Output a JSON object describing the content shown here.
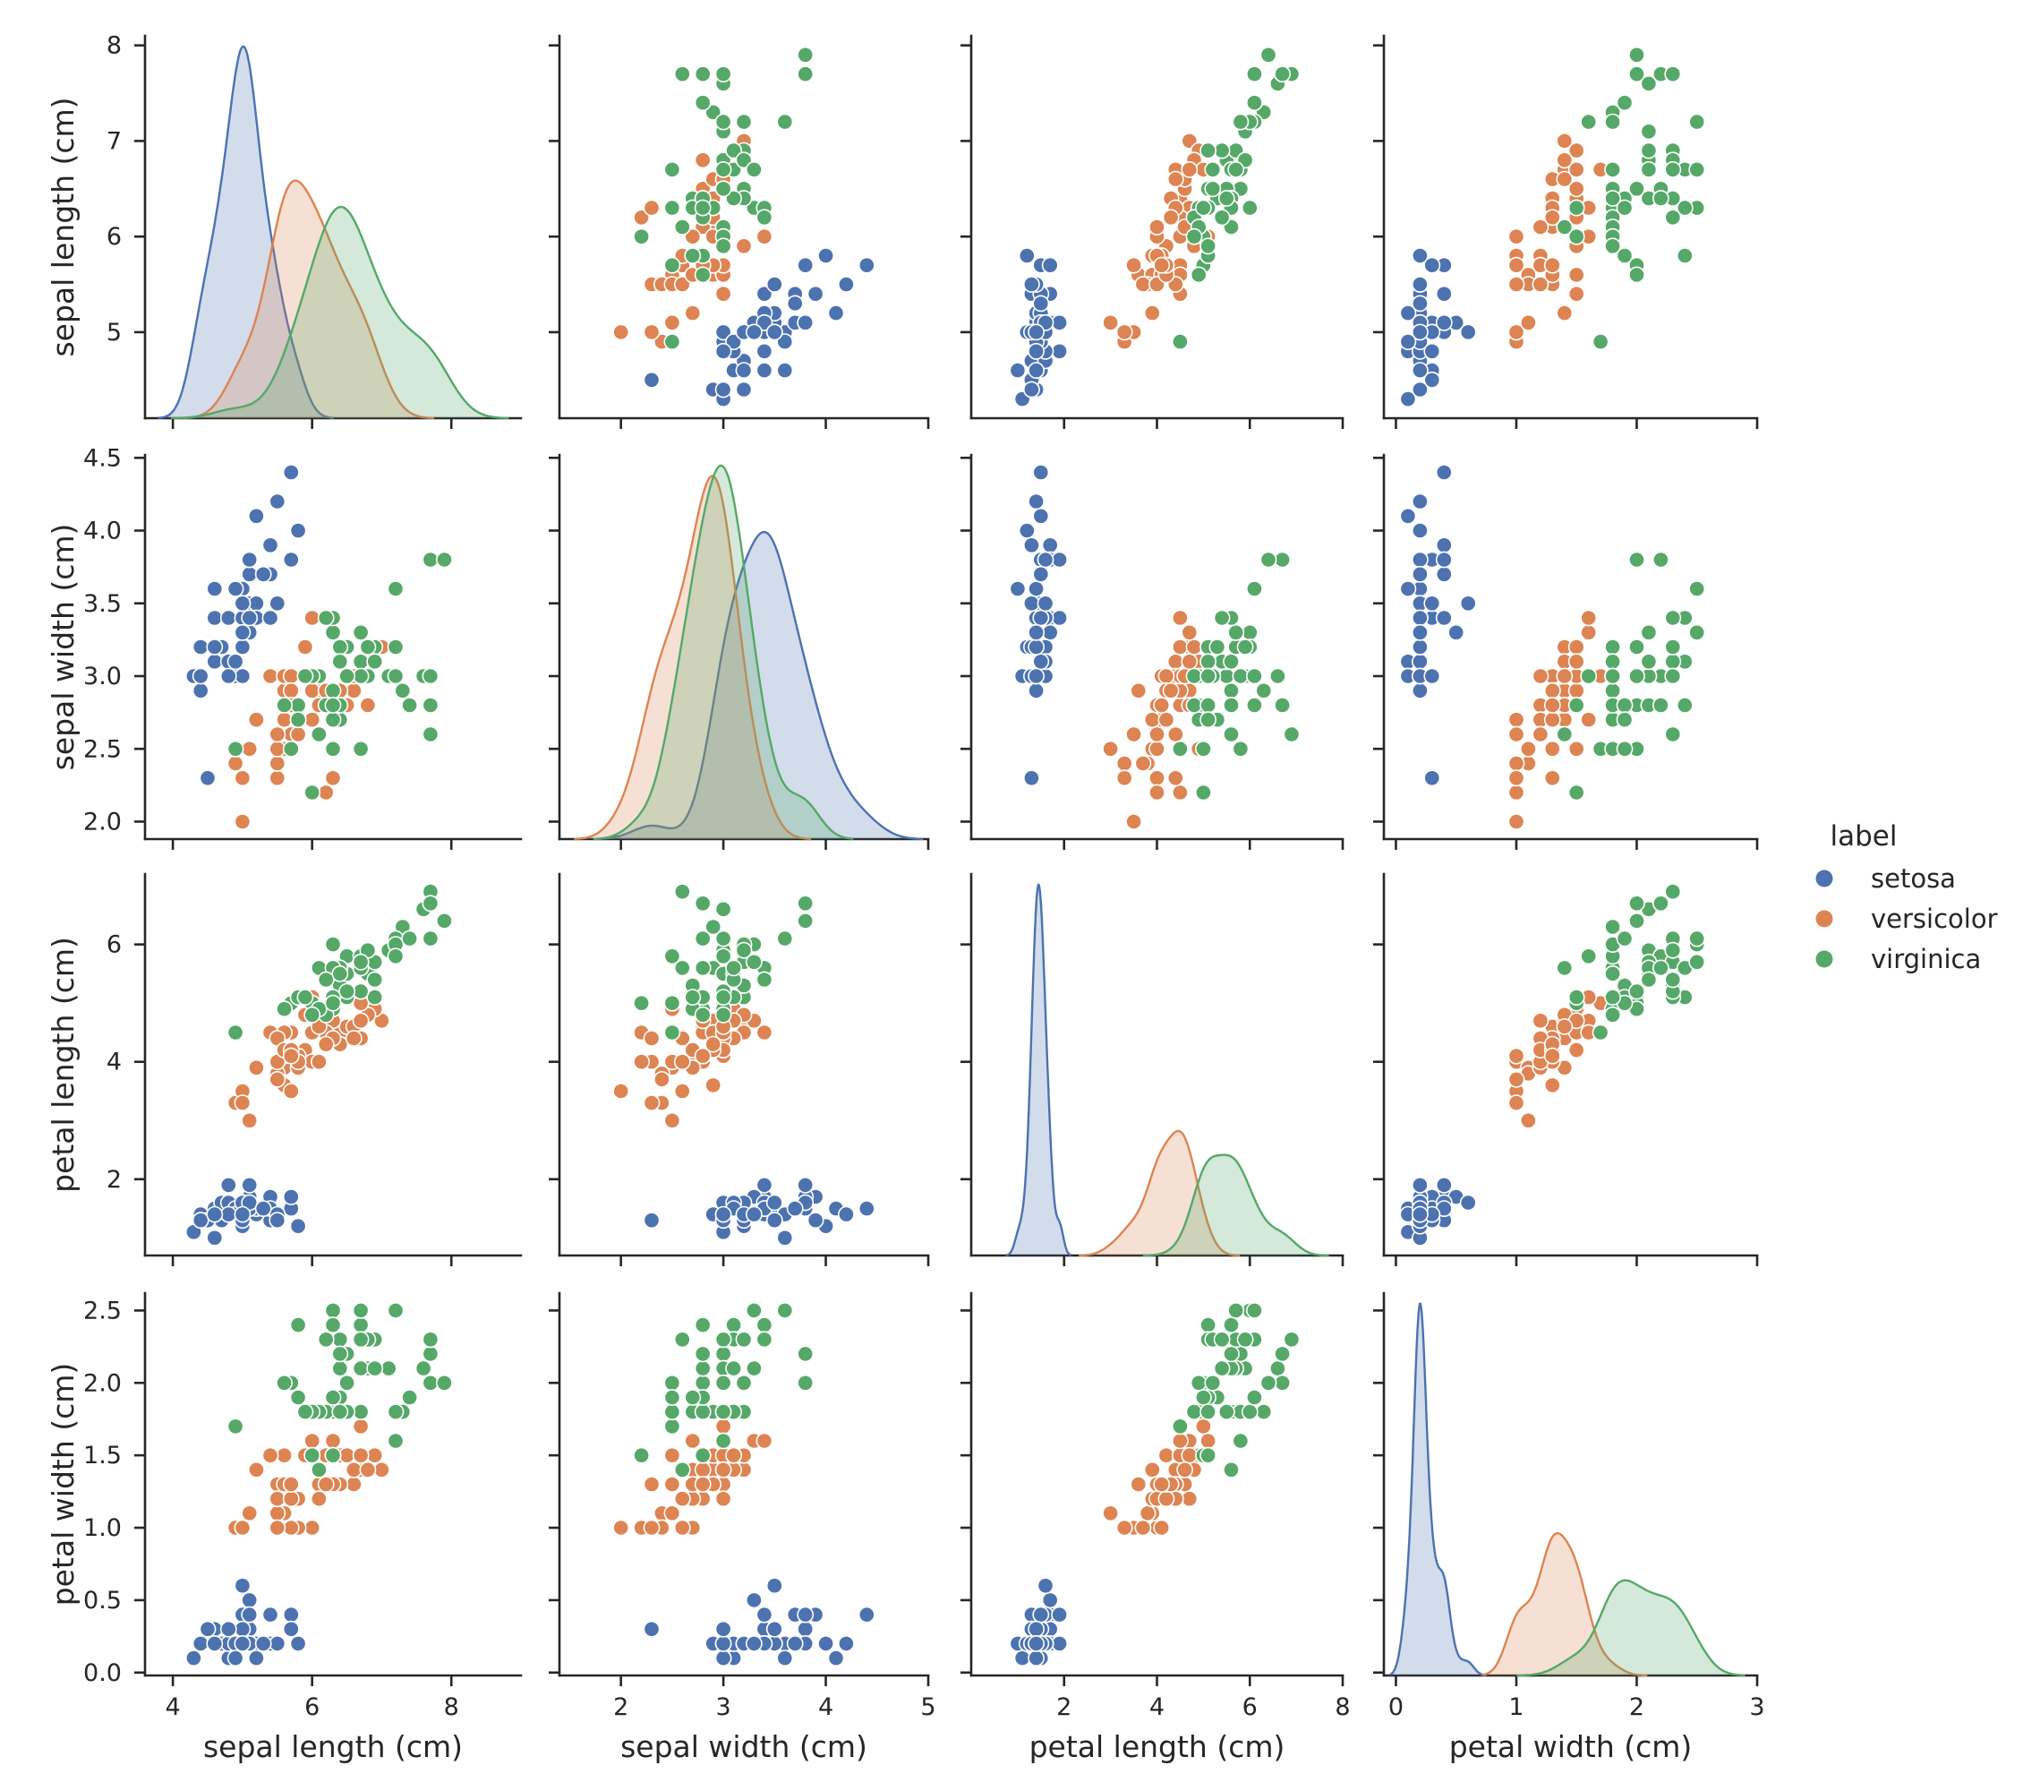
{
  "chart_data": {
    "type": "scatter",
    "subtype": "pairplot",
    "variables": [
      "sepal length (cm)",
      "sepal width (cm)",
      "petal length (cm)",
      "petal width (cm)"
    ],
    "diagonal": "kde",
    "offdiagonal": "scatter",
    "legend": {
      "title": "label",
      "placement": "right",
      "entries": [
        {
          "name": "setosa",
          "color": "#4c72b0"
        },
        {
          "name": "versicolor",
          "color": "#dd8452"
        },
        {
          "name": "virginica",
          "color": "#55a868"
        }
      ]
    },
    "axes": {
      "sepal length (cm)": {
        "lim": [
          3.6,
          9.0
        ],
        "ticks": [
          4,
          6,
          8
        ],
        "tick_labels": [
          "4",
          "6",
          "8"
        ],
        "y_ticks": [
          5,
          6,
          7,
          8
        ],
        "y_tick_labels": [
          "5",
          "6",
          "7",
          "8"
        ],
        "y_lim": [
          4.1,
          8.1
        ]
      },
      "sepal width (cm)": {
        "lim": [
          1.4,
          5.0
        ],
        "ticks": [
          2,
          3,
          4,
          5
        ],
        "tick_labels": [
          "2",
          "3",
          "4",
          "5"
        ],
        "y_ticks": [
          2.0,
          2.5,
          3.0,
          3.5,
          4.0,
          4.5
        ],
        "y_tick_labels": [
          "2.0",
          "2.5",
          "3.0",
          "3.5",
          "4.0",
          "4.5"
        ],
        "y_lim": [
          1.88,
          4.52
        ]
      },
      "petal length (cm)": {
        "lim": [
          0.0,
          8.0
        ],
        "ticks": [
          2,
          4,
          6,
          8
        ],
        "tick_labels": [
          "2",
          "4",
          "6",
          "8"
        ],
        "y_ticks": [
          2,
          4,
          6
        ],
        "y_tick_labels": [
          "2",
          "4",
          "6"
        ],
        "y_lim": [
          0.7,
          7.2
        ]
      },
      "petal width (cm)": {
        "lim": [
          -0.1,
          3.0
        ],
        "ticks": [
          0,
          1,
          2,
          3
        ],
        "tick_labels": [
          "0",
          "1",
          "2",
          "3"
        ],
        "y_ticks": [
          0.0,
          0.5,
          1.0,
          1.5,
          2.0,
          2.5
        ],
        "y_tick_labels": [
          "0.0",
          "0.5",
          "1.0",
          "1.5",
          "2.0",
          "2.5"
        ],
        "y_lim": [
          -0.02,
          2.62
        ]
      }
    },
    "series": [
      {
        "name": "setosa",
        "color": "#4c72b0",
        "points": [
          [
            5.1,
            3.5,
            1.4,
            0.2
          ],
          [
            4.9,
            3.0,
            1.4,
            0.2
          ],
          [
            4.7,
            3.2,
            1.3,
            0.2
          ],
          [
            4.6,
            3.1,
            1.5,
            0.2
          ],
          [
            5.0,
            3.6,
            1.4,
            0.2
          ],
          [
            5.4,
            3.9,
            1.7,
            0.4
          ],
          [
            4.6,
            3.4,
            1.4,
            0.3
          ],
          [
            5.0,
            3.4,
            1.5,
            0.2
          ],
          [
            4.4,
            2.9,
            1.4,
            0.2
          ],
          [
            4.9,
            3.1,
            1.5,
            0.1
          ],
          [
            5.4,
            3.7,
            1.5,
            0.2
          ],
          [
            4.8,
            3.4,
            1.6,
            0.2
          ],
          [
            4.8,
            3.0,
            1.4,
            0.1
          ],
          [
            4.3,
            3.0,
            1.1,
            0.1
          ],
          [
            5.8,
            4.0,
            1.2,
            0.2
          ],
          [
            5.7,
            4.4,
            1.5,
            0.4
          ],
          [
            5.4,
            3.9,
            1.3,
            0.4
          ],
          [
            5.1,
            3.5,
            1.4,
            0.3
          ],
          [
            5.7,
            3.8,
            1.7,
            0.3
          ],
          [
            5.1,
            3.8,
            1.5,
            0.3
          ],
          [
            5.4,
            3.4,
            1.7,
            0.2
          ],
          [
            5.1,
            3.7,
            1.5,
            0.4
          ],
          [
            4.6,
            3.6,
            1.0,
            0.2
          ],
          [
            5.1,
            3.3,
            1.7,
            0.5
          ],
          [
            4.8,
            3.4,
            1.9,
            0.2
          ],
          [
            5.0,
            3.0,
            1.6,
            0.2
          ],
          [
            5.0,
            3.4,
            1.6,
            0.4
          ],
          [
            5.2,
            3.5,
            1.5,
            0.2
          ],
          [
            5.2,
            3.4,
            1.4,
            0.2
          ],
          [
            4.7,
            3.2,
            1.6,
            0.2
          ],
          [
            4.8,
            3.1,
            1.6,
            0.2
          ],
          [
            5.4,
            3.4,
            1.5,
            0.4
          ],
          [
            5.2,
            4.1,
            1.5,
            0.1
          ],
          [
            5.5,
            4.2,
            1.4,
            0.2
          ],
          [
            4.9,
            3.1,
            1.5,
            0.2
          ],
          [
            5.0,
            3.2,
            1.2,
            0.2
          ],
          [
            5.5,
            3.5,
            1.3,
            0.2
          ],
          [
            4.9,
            3.6,
            1.4,
            0.1
          ],
          [
            4.4,
            3.0,
            1.3,
            0.2
          ],
          [
            5.1,
            3.4,
            1.5,
            0.2
          ],
          [
            5.0,
            3.5,
            1.3,
            0.3
          ],
          [
            4.5,
            2.3,
            1.3,
            0.3
          ],
          [
            4.4,
            3.2,
            1.3,
            0.2
          ],
          [
            5.0,
            3.5,
            1.6,
            0.6
          ],
          [
            5.1,
            3.8,
            1.9,
            0.4
          ],
          [
            4.8,
            3.0,
            1.4,
            0.3
          ],
          [
            5.1,
            3.8,
            1.6,
            0.2
          ],
          [
            4.6,
            3.2,
            1.4,
            0.2
          ],
          [
            5.3,
            3.7,
            1.5,
            0.2
          ],
          [
            5.0,
            3.3,
            1.4,
            0.2
          ]
        ]
      },
      {
        "name": "versicolor",
        "color": "#dd8452",
        "points": [
          [
            7.0,
            3.2,
            4.7,
            1.4
          ],
          [
            6.4,
            3.2,
            4.5,
            1.5
          ],
          [
            6.9,
            3.1,
            4.9,
            1.5
          ],
          [
            5.5,
            2.3,
            4.0,
            1.3
          ],
          [
            6.5,
            2.8,
            4.6,
            1.5
          ],
          [
            5.7,
            2.8,
            4.5,
            1.3
          ],
          [
            6.3,
            3.3,
            4.7,
            1.6
          ],
          [
            4.9,
            2.4,
            3.3,
            1.0
          ],
          [
            6.6,
            2.9,
            4.6,
            1.3
          ],
          [
            5.2,
            2.7,
            3.9,
            1.4
          ],
          [
            5.0,
            2.0,
            3.5,
            1.0
          ],
          [
            5.9,
            3.0,
            4.2,
            1.5
          ],
          [
            6.0,
            2.2,
            4.0,
            1.0
          ],
          [
            6.1,
            2.9,
            4.7,
            1.4
          ],
          [
            5.6,
            2.9,
            3.6,
            1.3
          ],
          [
            6.7,
            3.1,
            4.4,
            1.4
          ],
          [
            5.6,
            3.0,
            4.5,
            1.5
          ],
          [
            5.8,
            2.7,
            4.1,
            1.0
          ],
          [
            6.2,
            2.2,
            4.5,
            1.5
          ],
          [
            5.6,
            2.5,
            3.9,
            1.1
          ],
          [
            5.9,
            3.2,
            4.8,
            1.8
          ],
          [
            6.1,
            2.8,
            4.0,
            1.3
          ],
          [
            6.3,
            2.5,
            4.9,
            1.5
          ],
          [
            6.1,
            2.8,
            4.7,
            1.2
          ],
          [
            6.4,
            2.9,
            4.3,
            1.3
          ],
          [
            6.6,
            3.0,
            4.4,
            1.4
          ],
          [
            6.8,
            2.8,
            4.8,
            1.4
          ],
          [
            6.7,
            3.0,
            5.0,
            1.7
          ],
          [
            6.0,
            2.9,
            4.5,
            1.5
          ],
          [
            5.7,
            2.6,
            3.5,
            1.0
          ],
          [
            5.5,
            2.4,
            3.8,
            1.1
          ],
          [
            5.5,
            2.4,
            3.7,
            1.0
          ],
          [
            5.8,
            2.7,
            3.9,
            1.2
          ],
          [
            6.0,
            2.7,
            5.1,
            1.6
          ],
          [
            5.4,
            3.0,
            4.5,
            1.5
          ],
          [
            6.0,
            3.4,
            4.5,
            1.6
          ],
          [
            6.7,
            3.1,
            4.7,
            1.5
          ],
          [
            6.3,
            2.3,
            4.4,
            1.3
          ],
          [
            5.6,
            3.0,
            4.1,
            1.3
          ],
          [
            5.5,
            2.5,
            4.0,
            1.3
          ],
          [
            5.5,
            2.6,
            4.4,
            1.2
          ],
          [
            6.1,
            3.0,
            4.6,
            1.4
          ],
          [
            5.8,
            2.6,
            4.0,
            1.2
          ],
          [
            5.0,
            2.3,
            3.3,
            1.0
          ],
          [
            5.6,
            2.7,
            4.2,
            1.3
          ],
          [
            5.7,
            3.0,
            4.2,
            1.2
          ],
          [
            5.7,
            2.9,
            4.2,
            1.3
          ],
          [
            6.2,
            2.9,
            4.3,
            1.3
          ],
          [
            5.1,
            2.5,
            3.0,
            1.1
          ],
          [
            5.7,
            2.8,
            4.1,
            1.3
          ]
        ]
      },
      {
        "name": "virginica",
        "color": "#55a868",
        "points": [
          [
            6.3,
            3.3,
            6.0,
            2.5
          ],
          [
            5.8,
            2.7,
            5.1,
            1.9
          ],
          [
            7.1,
            3.0,
            5.9,
            2.1
          ],
          [
            6.3,
            2.9,
            5.6,
            1.8
          ],
          [
            6.5,
            3.0,
            5.8,
            2.2
          ],
          [
            7.6,
            3.0,
            6.6,
            2.1
          ],
          [
            4.9,
            2.5,
            4.5,
            1.7
          ],
          [
            7.3,
            2.9,
            6.3,
            1.8
          ],
          [
            6.7,
            2.5,
            5.8,
            1.8
          ],
          [
            7.2,
            3.6,
            6.1,
            2.5
          ],
          [
            6.5,
            3.2,
            5.1,
            2.0
          ],
          [
            6.4,
            2.7,
            5.3,
            1.9
          ],
          [
            6.8,
            3.0,
            5.5,
            2.1
          ],
          [
            5.7,
            2.5,
            5.0,
            2.0
          ],
          [
            5.8,
            2.8,
            5.1,
            2.4
          ],
          [
            6.4,
            3.2,
            5.3,
            2.3
          ],
          [
            6.5,
            3.0,
            5.5,
            1.8
          ],
          [
            7.7,
            3.8,
            6.7,
            2.2
          ],
          [
            7.7,
            2.6,
            6.9,
            2.3
          ],
          [
            6.0,
            2.2,
            5.0,
            1.5
          ],
          [
            6.9,
            3.2,
            5.7,
            2.3
          ],
          [
            5.6,
            2.8,
            4.9,
            2.0
          ],
          [
            7.7,
            2.8,
            6.7,
            2.0
          ],
          [
            6.3,
            2.7,
            4.9,
            1.8
          ],
          [
            6.7,
            3.3,
            5.7,
            2.1
          ],
          [
            7.2,
            3.2,
            6.0,
            1.8
          ],
          [
            6.2,
            2.8,
            4.8,
            1.8
          ],
          [
            6.1,
            3.0,
            4.9,
            1.8
          ],
          [
            6.4,
            2.8,
            5.6,
            2.1
          ],
          [
            7.2,
            3.0,
            5.8,
            1.6
          ],
          [
            7.4,
            2.8,
            6.1,
            1.9
          ],
          [
            7.9,
            3.8,
            6.4,
            2.0
          ],
          [
            6.4,
            2.8,
            5.6,
            2.2
          ],
          [
            6.3,
            2.8,
            5.1,
            1.5
          ],
          [
            6.1,
            2.6,
            5.6,
            1.4
          ],
          [
            7.7,
            3.0,
            6.1,
            2.3
          ],
          [
            6.3,
            3.4,
            5.6,
            2.4
          ],
          [
            6.4,
            3.1,
            5.5,
            1.8
          ],
          [
            6.0,
            3.0,
            4.8,
            1.8
          ],
          [
            6.9,
            3.1,
            5.4,
            2.1
          ],
          [
            6.7,
            3.1,
            5.6,
            2.4
          ],
          [
            6.9,
            3.1,
            5.1,
            2.3
          ],
          [
            5.8,
            2.7,
            5.1,
            1.9
          ],
          [
            6.8,
            3.2,
            5.9,
            2.3
          ],
          [
            6.7,
            3.3,
            5.7,
            2.5
          ],
          [
            6.7,
            3.0,
            5.2,
            2.3
          ],
          [
            6.3,
            2.5,
            5.0,
            1.9
          ],
          [
            6.5,
            3.0,
            5.2,
            2.0
          ],
          [
            6.2,
            3.4,
            5.4,
            2.3
          ],
          [
            5.9,
            3.0,
            5.1,
            1.8
          ]
        ]
      }
    ]
  }
}
